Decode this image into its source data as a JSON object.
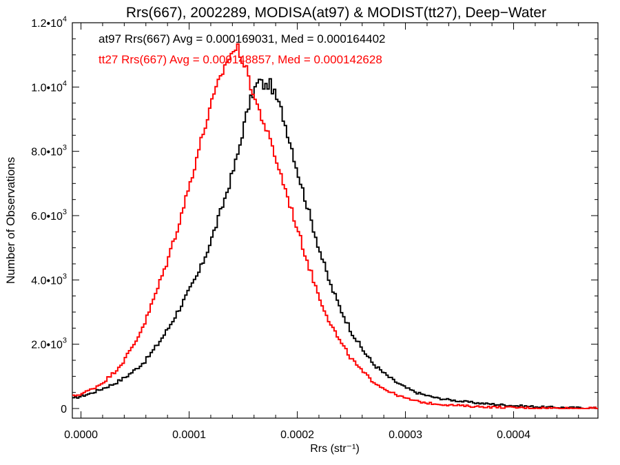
{
  "chart_data": {
    "type": "histogram",
    "title": "Rrs(667), 2002289, MODISA(at97) & MODIST(tt27), Deep−Water",
    "xlabel": "Rrs (str⁻¹)",
    "ylabel": "Number of Observations",
    "xlim": [
      -8e-06,
      0.000478
    ],
    "ylim": [
      -300,
      12000
    ],
    "x_ticks": [
      {
        "value": 0.0,
        "label": "0.0000"
      },
      {
        "value": 0.0001,
        "label": "0.0001"
      },
      {
        "value": 0.0002,
        "label": "0.0002"
      },
      {
        "value": 0.0003,
        "label": "0.0003"
      },
      {
        "value": 0.0004,
        "label": "0.0004"
      }
    ],
    "y_ticks": [
      {
        "value": 0,
        "mantissa": "0",
        "exponent": ""
      },
      {
        "value": 2000,
        "mantissa": "2.0•10",
        "exponent": "3"
      },
      {
        "value": 4000,
        "mantissa": "4.0•10",
        "exponent": "3"
      },
      {
        "value": 6000,
        "mantissa": "6.0•10",
        "exponent": "3"
      },
      {
        "value": 8000,
        "mantissa": "8.0•10",
        "exponent": "3"
      },
      {
        "value": 10000,
        "mantissa": "1.0•10",
        "exponent": "4"
      },
      {
        "value": 12000,
        "mantissa": "1.2•10",
        "exponent": "4"
      }
    ],
    "grid": false,
    "legend_position": "top-left",
    "series": [
      {
        "name": "at97",
        "label": "at97 Rrs(667) Avg = 0.000169031, Med = 0.000164402",
        "color": "#000000",
        "points": [
          [
            -8e-06,
            300
          ],
          [
            0.0,
            380
          ],
          [
            1e-05,
            480
          ],
          [
            2e-05,
            620
          ],
          [
            3e-05,
            760
          ],
          [
            4e-05,
            950
          ],
          [
            5e-05,
            1200
          ],
          [
            6e-05,
            1500
          ],
          [
            7e-05,
            1950
          ],
          [
            8e-05,
            2450
          ],
          [
            9e-05,
            3050
          ],
          [
            0.0001,
            3650
          ],
          [
            0.00011,
            4300
          ],
          [
            0.00012,
            5200
          ],
          [
            0.00013,
            6200
          ],
          [
            0.00014,
            7300
          ],
          [
            0.000145,
            7900
          ],
          [
            0.00015,
            8700
          ],
          [
            0.000155,
            9400
          ],
          [
            0.00016,
            9900
          ],
          [
            0.000165,
            10200
          ],
          [
            0.00017,
            10000
          ],
          [
            0.000175,
            10100
          ],
          [
            0.00018,
            9700
          ],
          [
            0.000185,
            9300
          ],
          [
            0.00019,
            8700
          ],
          [
            0.000195,
            8100
          ],
          [
            0.0002,
            7400
          ],
          [
            0.00021,
            6200
          ],
          [
            0.00022,
            5000
          ],
          [
            0.00023,
            3900
          ],
          [
            0.00024,
            3100
          ],
          [
            0.00025,
            2400
          ],
          [
            0.00026,
            1850
          ],
          [
            0.00027,
            1400
          ],
          [
            0.00028,
            1100
          ],
          [
            0.00029,
            850
          ],
          [
            0.0003,
            650
          ],
          [
            0.00031,
            500
          ],
          [
            0.00032,
            400
          ],
          [
            0.00033,
            320
          ],
          [
            0.00035,
            230
          ],
          [
            0.00037,
            160
          ],
          [
            0.0004,
            90
          ],
          [
            0.00043,
            40
          ],
          [
            0.00046,
            20
          ],
          [
            0.000478,
            10
          ]
        ]
      },
      {
        "name": "tt27",
        "label": "tt27 Rrs(667) Avg = 0.000148857, Med = 0.000142628",
        "color": "#ff0000",
        "points": [
          [
            -8e-06,
            380
          ],
          [
            0.0,
            450
          ],
          [
            1e-05,
            600
          ],
          [
            2e-05,
            800
          ],
          [
            3e-05,
            1100
          ],
          [
            4e-05,
            1500
          ],
          [
            5e-05,
            2050
          ],
          [
            6e-05,
            2750
          ],
          [
            7e-05,
            3650
          ],
          [
            8e-05,
            4600
          ],
          [
            9e-05,
            5700
          ],
          [
            0.0001,
            6900
          ],
          [
            0.00011,
            8200
          ],
          [
            0.00012,
            9400
          ],
          [
            0.00013,
            10400
          ],
          [
            0.000135,
            10800
          ],
          [
            0.00014,
            11100
          ],
          [
            0.000145,
            11200
          ],
          [
            0.00015,
            10800
          ],
          [
            0.000155,
            10300
          ],
          [
            0.00016,
            9700
          ],
          [
            0.00017,
            8800
          ],
          [
            0.00018,
            7800
          ],
          [
            0.00019,
            6700
          ],
          [
            0.0002,
            5600
          ],
          [
            0.00021,
            4500
          ],
          [
            0.00022,
            3500
          ],
          [
            0.00023,
            2700
          ],
          [
            0.00024,
            2050
          ],
          [
            0.00025,
            1550
          ],
          [
            0.00026,
            1150
          ],
          [
            0.00027,
            850
          ],
          [
            0.00028,
            620
          ],
          [
            0.00029,
            450
          ],
          [
            0.0003,
            320
          ],
          [
            0.00031,
            230
          ],
          [
            0.00032,
            170
          ],
          [
            0.00034,
            110
          ],
          [
            0.00036,
            70
          ],
          [
            0.00038,
            45
          ],
          [
            0.0004,
            30
          ],
          [
            0.00043,
            15
          ],
          [
            0.00046,
            8
          ],
          [
            0.000478,
            5
          ]
        ]
      }
    ]
  }
}
